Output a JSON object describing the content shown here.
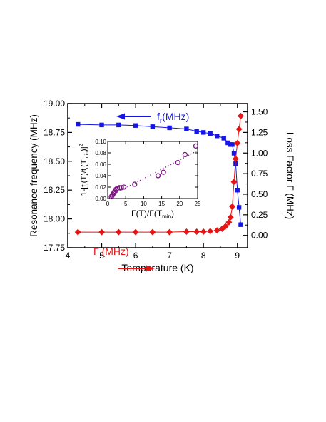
{
  "chart_data": [
    {
      "type": "line",
      "xlabel": "Temperature (K)",
      "ylabel_left": "Resonance frequency (MHz)",
      "ylabel_right": "Loss Factor Γ (MHz)",
      "xlim": [
        4,
        9.3
      ],
      "ylim_left": [
        17.75,
        19.0
      ],
      "ylim_right": [
        -0.15,
        1.6
      ],
      "x_ticks": [
        "4",
        "5",
        "6",
        "7",
        "8",
        "9"
      ],
      "y_left_ticks": [
        "17.75",
        "18.00",
        "18.25",
        "18.50",
        "18.75",
        "19.00"
      ],
      "y_right_ticks": [
        "0.00",
        "0.25",
        "0.50",
        "0.75",
        "1.00",
        "1.25",
        "1.50"
      ],
      "series": [
        {
          "name": "fr(MHz)",
          "axis": "left",
          "marker": "square",
          "color": "#1515e6",
          "x": [
            4.3,
            5.0,
            5.5,
            6.0,
            6.5,
            7.0,
            7.5,
            7.8,
            8.0,
            8.2,
            8.4,
            8.6,
            8.72,
            8.8,
            8.85,
            8.9,
            8.95,
            9.0,
            9.05,
            9.1
          ],
          "y": [
            18.82,
            18.815,
            18.815,
            18.81,
            18.8,
            18.79,
            18.78,
            18.76,
            18.75,
            18.74,
            18.72,
            18.7,
            18.66,
            18.645,
            18.645,
            18.57,
            18.48,
            18.25,
            18.1,
            17.95
          ]
        },
        {
          "name": "Γ (MHz)",
          "axis": "right",
          "marker": "diamond",
          "color": "#e61515",
          "x": [
            4.3,
            5.0,
            5.5,
            6.0,
            6.5,
            7.0,
            7.5,
            7.8,
            8.0,
            8.2,
            8.4,
            8.55,
            8.65,
            8.75,
            8.8,
            8.85,
            8.9,
            8.95,
            9.0,
            9.05,
            9.1
          ],
          "y": [
            0.04,
            0.04,
            0.04,
            0.04,
            0.04,
            0.04,
            0.045,
            0.045,
            0.045,
            0.05,
            0.06,
            0.08,
            0.11,
            0.16,
            0.22,
            0.35,
            0.65,
            0.93,
            1.12,
            1.29,
            1.45
          ]
        }
      ],
      "annotations": [
        {
          "text": "fr(MHz)",
          "main": "f",
          "sub": "r",
          "rest": "(MHz)",
          "arrow": "left",
          "series": 0
        },
        {
          "text": "Γ (MHz)",
          "arrow": "right",
          "series": 1
        }
      ]
    },
    {
      "type": "scatter",
      "inset": true,
      "xlabel": "Γ(T)/Γ(Tmin)",
      "ylabel": "1-[fr(T)/fr(Tmin)]2",
      "xlim": [
        0,
        25
      ],
      "ylim": [
        0,
        0.1
      ],
      "x_ticks": [
        "0",
        "5",
        "10",
        "15",
        "20",
        "25"
      ],
      "y_ticks": [
        "0.00",
        "0.02",
        "0.04",
        "0.06",
        "0.08",
        "0.10"
      ],
      "marker": "open-circle",
      "color": "#7a1a80",
      "x": [
        1.0,
        1.2,
        1.4,
        1.6,
        1.8,
        2.0,
        2.3,
        2.7,
        3.2,
        3.8,
        4.5,
        7.5,
        14.0,
        15.5,
        19.5,
        21.5,
        24.5
      ],
      "y": [
        0.003,
        0.005,
        0.007,
        0.009,
        0.011,
        0.013,
        0.016,
        0.018,
        0.019,
        0.019,
        0.02,
        0.025,
        0.04,
        0.046,
        0.063,
        0.077,
        0.092
      ],
      "fit_line": {
        "style": "dotted",
        "x": [
          0.5,
          25
        ],
        "y": [
          0.004,
          0.084
        ]
      }
    }
  ]
}
